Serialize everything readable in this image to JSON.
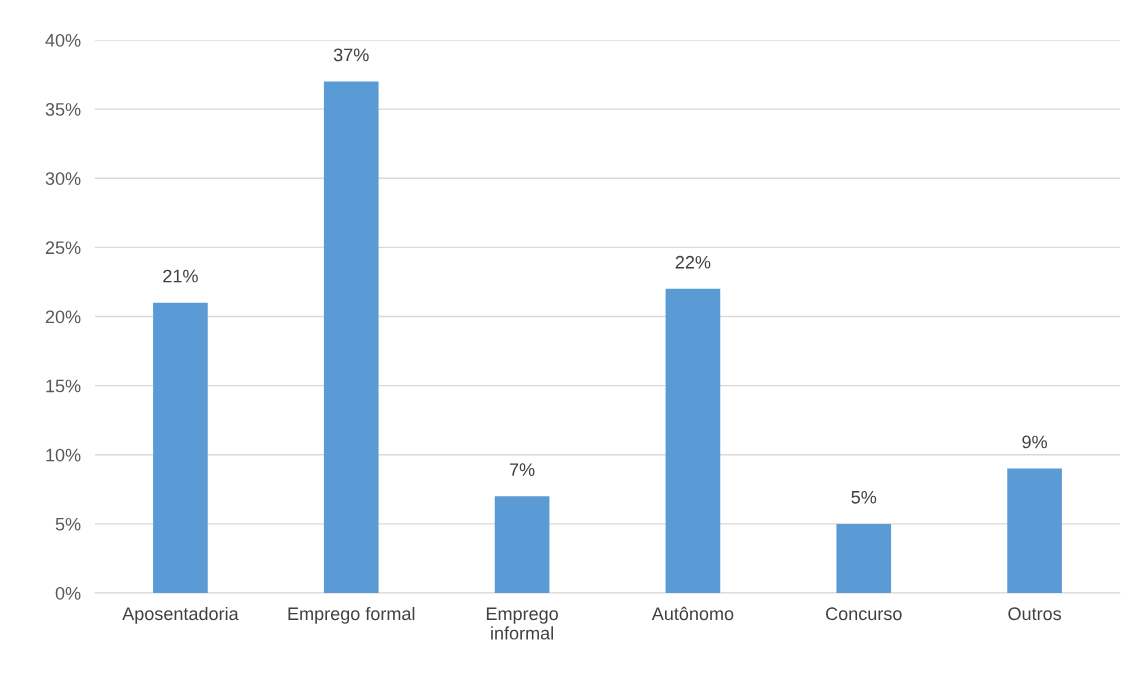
{
  "chart_data": {
    "type": "bar",
    "categories": [
      "Aposentadoria",
      "Emprego formal",
      "Emprego\ninformal",
      "Autônomo",
      "Concurso",
      "Outros"
    ],
    "values": [
      21,
      37,
      7,
      22,
      5,
      9
    ],
    "value_labels": [
      "21%",
      "37%",
      "7%",
      "22%",
      "5%",
      "9%"
    ],
    "color": "#5b9bd5",
    "ylim": [
      0,
      40
    ],
    "yticks": [
      {
        "value": 0,
        "label": "0%"
      },
      {
        "value": 5,
        "label": "5%"
      },
      {
        "value": 10,
        "label": "10%"
      },
      {
        "value": 15,
        "label": "15%"
      },
      {
        "value": 20,
        "label": "20%"
      },
      {
        "value": 25,
        "label": "25%"
      },
      {
        "value": 30,
        "label": "30%"
      },
      {
        "value": 35,
        "label": "35%"
      },
      {
        "value": 40,
        "label": "40%"
      }
    ],
    "grid": "y"
  }
}
